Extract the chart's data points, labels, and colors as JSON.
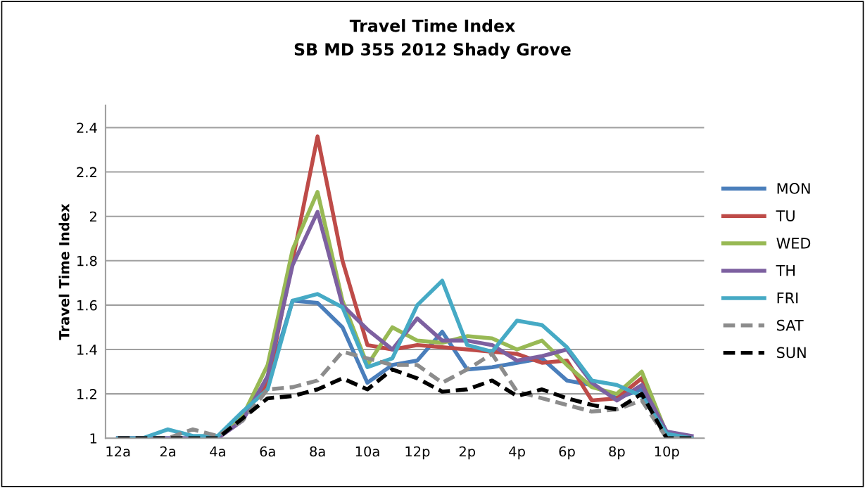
{
  "chart_data": {
    "type": "line",
    "title": "Travel Time Index\nSB MD 355 2012 Shady Grove",
    "ylabel": "Travel Time Index",
    "categories": [
      "12a",
      null,
      "2a",
      null,
      "4a",
      null,
      "6a",
      null,
      "8a",
      null,
      "10a",
      null,
      "12p",
      null,
      "2p",
      null,
      "4p",
      null,
      "6p",
      null,
      "8p",
      null,
      "10p",
      null
    ],
    "ylim": [
      1,
      2.5
    ],
    "yticks": [
      1,
      1.2,
      1.4,
      1.6,
      1.8,
      2,
      2.2,
      2.4
    ],
    "grid": "y",
    "legend": "right",
    "marker": "none",
    "series": [
      {
        "name": "MON",
        "color": "#4a7ebb",
        "line_style": "solid",
        "values": [
          1,
          1,
          1,
          1,
          1,
          1.1,
          1.25,
          1.62,
          1.61,
          1.5,
          1.25,
          1.33,
          1.35,
          1.48,
          1.31,
          1.32,
          1.34,
          1.36,
          1.26,
          1.24,
          1.18,
          1.22,
          1.02,
          1.0
        ]
      },
      {
        "name": "TU",
        "color": "#be4b48",
        "line_style": "solid",
        "values": [
          null,
          null,
          null,
          null,
          null,
          1.1,
          1.25,
          1.8,
          2.36,
          1.8,
          1.42,
          1.4,
          1.42,
          1.41,
          1.4,
          1.39,
          1.38,
          1.34,
          1.35,
          1.17,
          1.18,
          1.27,
          1.0,
          1.0
        ]
      },
      {
        "name": "WED",
        "color": "#98b954",
        "line_style": "solid",
        "values": [
          null,
          null,
          null,
          1,
          1,
          1.1,
          1.33,
          1.85,
          2.11,
          1.62,
          1.33,
          1.5,
          1.44,
          1.43,
          1.46,
          1.45,
          1.4,
          1.44,
          1.33,
          1.23,
          1.2,
          1.3,
          1.02,
          1.0
        ]
      },
      {
        "name": "TH",
        "color": "#7d60a0",
        "line_style": "solid",
        "values": [
          1,
          1,
          1,
          1,
          1,
          1.08,
          1.28,
          1.78,
          2.02,
          1.6,
          1.49,
          1.4,
          1.54,
          1.44,
          1.44,
          1.42,
          1.35,
          1.37,
          1.4,
          1.25,
          1.17,
          1.24,
          1.03,
          1.01
        ]
      },
      {
        "name": "FRI",
        "color": "#46aac5",
        "line_style": "solid",
        "values": [
          1,
          1,
          1.04,
          1.01,
          1.01,
          1.12,
          1.22,
          1.62,
          1.65,
          1.59,
          1.32,
          1.36,
          1.6,
          1.71,
          1.42,
          1.39,
          1.53,
          1.51,
          1.41,
          1.26,
          1.24,
          1.19,
          1.02,
          1.0
        ]
      },
      {
        "name": "SAT",
        "color": "#8c8c8c",
        "line_style": "dashed",
        "values": [
          1,
          1,
          1,
          1.04,
          1.01,
          1.08,
          1.22,
          1.23,
          1.26,
          1.39,
          1.36,
          1.33,
          1.33,
          1.25,
          1.31,
          1.38,
          1.21,
          1.18,
          1.15,
          1.12,
          1.13,
          1.17,
          1.0,
          1.0
        ]
      },
      {
        "name": "SUN",
        "color": "#000000",
        "line_style": "dashed",
        "values": [
          1,
          1,
          1,
          1,
          1,
          1.09,
          1.18,
          1.19,
          1.22,
          1.27,
          1.22,
          1.31,
          1.27,
          1.21,
          1.22,
          1.26,
          1.19,
          1.22,
          1.18,
          1.15,
          1.13,
          1.2,
          1.0,
          1.0
        ]
      }
    ]
  }
}
